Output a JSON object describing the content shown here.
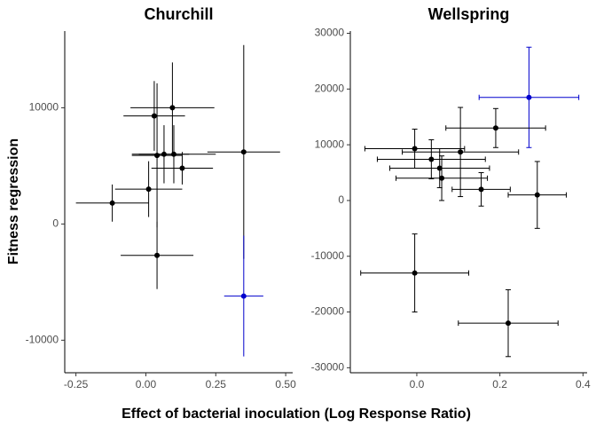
{
  "xlabel": "Effect of bacterial inoculation (Log Response Ratio)",
  "ylabel": "Fitness regression",
  "chart_data": [
    {
      "type": "scatter",
      "title": "Churchill",
      "x": [
        0.03,
        0.095,
        0.04,
        0.065,
        0.1,
        0.13,
        0.35,
        0.01,
        -0.12,
        0.04,
        0.35
      ],
      "values": [
        9300,
        10000,
        5900,
        6000,
        6000,
        4800,
        6200,
        3000,
        1800,
        -2700,
        -6200
      ],
      "xerr": [
        0.11,
        0.15,
        0.09,
        0.09,
        0.15,
        0.11,
        0.13,
        0.12,
        0.13,
        0.13,
        0.07
      ],
      "yerr": [
        3000,
        3900,
        6200,
        2500,
        2500,
        1400,
        9200,
        2400,
        1600,
        2900,
        5200
      ],
      "colors": [
        "#000000",
        "#000000",
        "#000000",
        "#000000",
        "#000000",
        "#000000",
        "#000000",
        "#000000",
        "#000000",
        "#000000",
        "#0000cd"
      ],
      "xlim": [
        -0.29,
        0.525
      ],
      "ylim": [
        -12800,
        16600
      ],
      "xticks": [
        {
          "value": -0.25,
          "label": "-0.25"
        },
        {
          "value": 0,
          "label": "0.00"
        },
        {
          "value": 0.25,
          "label": "0.25"
        },
        {
          "value": 0.5,
          "label": "0.50"
        }
      ],
      "yticks": [
        -10000,
        0,
        10000
      ],
      "caps": false
    },
    {
      "type": "scatter",
      "title": "Wellspring",
      "x": [
        0.27,
        0.19,
        -0.005,
        0.105,
        0.035,
        0.055,
        0.06,
        0.155,
        0.29,
        -0.005,
        0.22
      ],
      "values": [
        18500,
        13000,
        9300,
        8700,
        7400,
        5800,
        4000,
        2000,
        1000,
        -13000,
        -22000
      ],
      "xerr": [
        0.12,
        0.12,
        0.12,
        0.14,
        0.13,
        0.12,
        0.11,
        0.07,
        0.07,
        0.13,
        0.12
      ],
      "yerr": [
        9000,
        3500,
        3500,
        8000,
        3500,
        3500,
        4000,
        3000,
        6000,
        7000,
        6000
      ],
      "colors": [
        "#0000cd",
        "#000000",
        "#000000",
        "#000000",
        "#000000",
        "#000000",
        "#000000",
        "#000000",
        "#000000",
        "#000000",
        "#000000"
      ],
      "xlim": [
        -0.16,
        0.41
      ],
      "ylim": [
        -30900,
        30400
      ],
      "xticks": [
        {
          "value": 0,
          "label": "0.0"
        },
        {
          "value": 0.2,
          "label": "0.2"
        },
        {
          "value": 0.4,
          "label": "0.4"
        }
      ],
      "yticks": [
        -30000,
        -20000,
        -10000,
        0,
        10000,
        20000,
        30000
      ],
      "caps": true
    }
  ]
}
